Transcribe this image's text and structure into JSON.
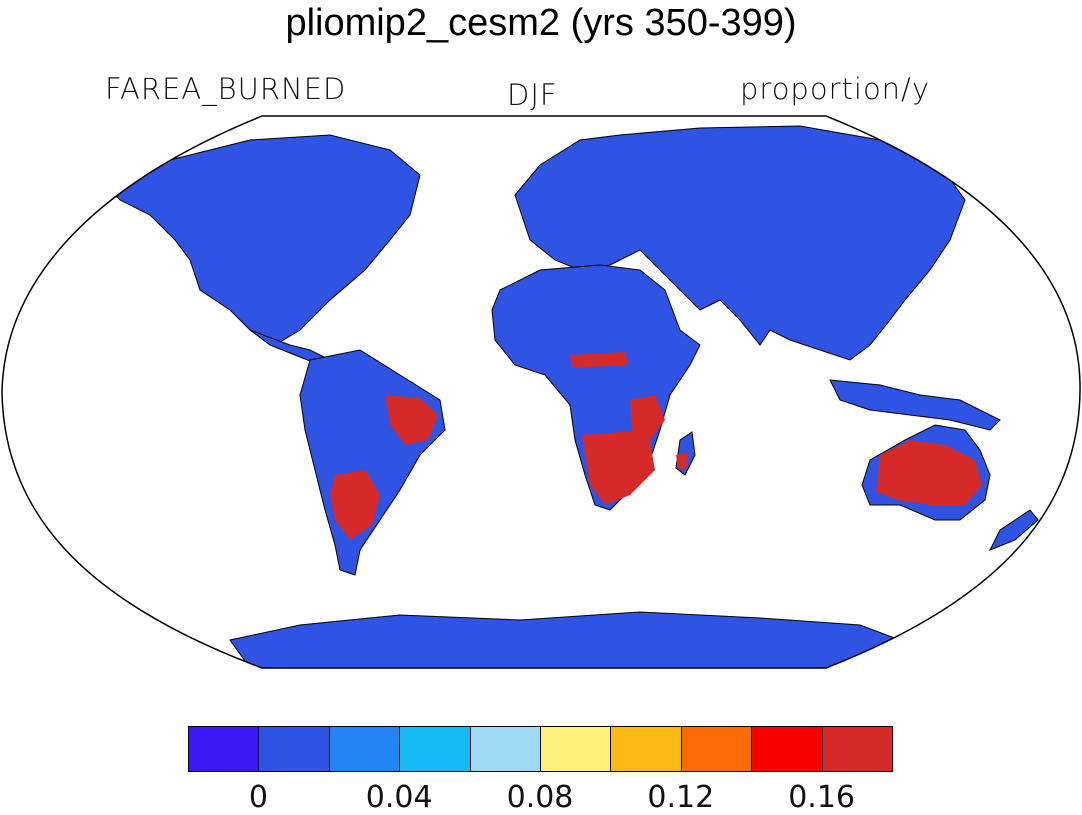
{
  "title": "pliomip2_cesm2 (yrs 350-399)",
  "subtitle_left": "FAREA_BURNED",
  "subtitle_center": "DJF",
  "subtitle_right": "proportion/y",
  "colors": {
    "land_base": "#2f54e3",
    "coast": "#000000",
    "high_burn": "#d42a2a"
  },
  "colorbar": {
    "colors": [
      "#3c17f6",
      "#2f54e3",
      "#2185f4",
      "#16bbf6",
      "#9fd8f3",
      "#fdf27c",
      "#fdb913",
      "#fc6c04",
      "#fb0000",
      "#d42a2a"
    ],
    "labels": [
      "0",
      "0.04",
      "0.08",
      "0.12",
      "0.16"
    ]
  }
}
